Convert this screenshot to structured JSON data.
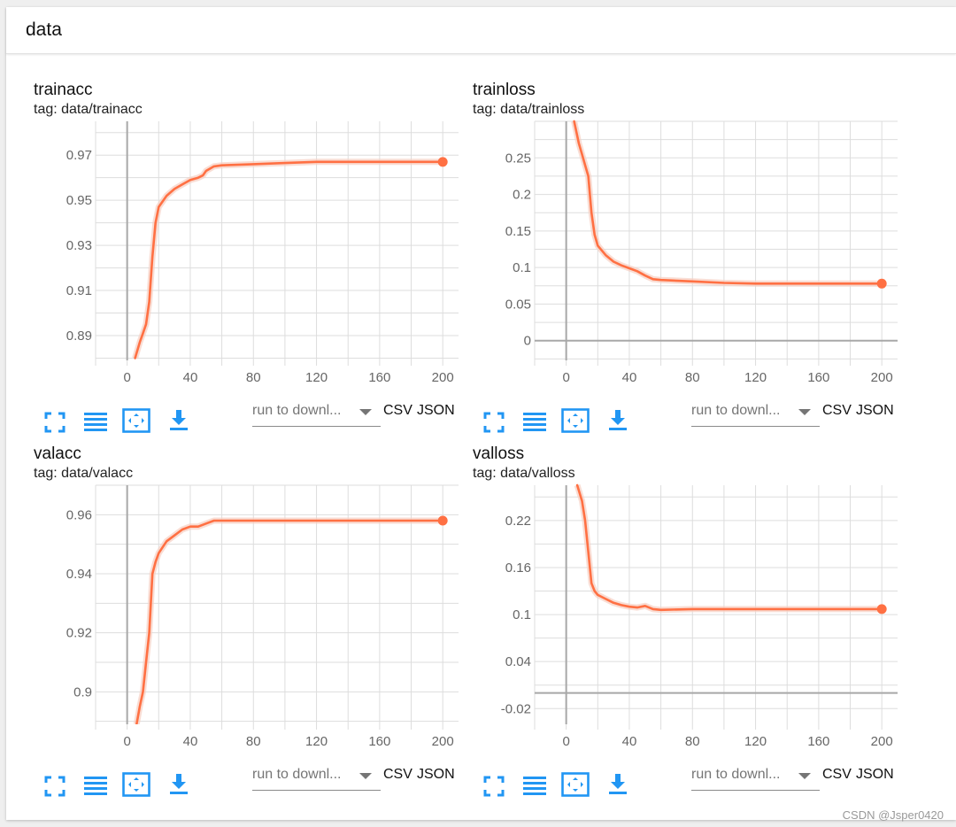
{
  "header": {
    "title": "data"
  },
  "controls": {
    "run_select_label": "run to downl...",
    "csv_label": "CSV",
    "json_label": "JSON"
  },
  "icons": [
    "fit-screen-icon",
    "list-lines-icon",
    "zoom-reset-icon",
    "download-icon",
    "chevron-down-icon"
  ],
  "watermark": "CSDN @Jsper0420",
  "colors": {
    "series": "#ff7043",
    "series_shadow": "#f6cfc2",
    "accent_icon": "#2196f3",
    "grid": "#dddddd",
    "axis": "#a8a8a8"
  },
  "chart_data": [
    {
      "type": "line",
      "title": "trainacc",
      "subtitle": "tag: data/trainacc",
      "xlabel": "",
      "ylabel": "",
      "xlim": [
        -20,
        210
      ],
      "ylim": [
        0.879,
        0.985
      ],
      "xticks": [
        0,
        40,
        80,
        120,
        160,
        200
      ],
      "yticks": [
        0.89,
        0.91,
        0.93,
        0.95,
        0.97
      ],
      "grid": true,
      "series": [
        {
          "x": [
            5,
            8,
            10,
            12,
            14,
            16,
            18,
            20,
            25,
            30,
            35,
            40,
            45,
            48,
            50,
            55,
            60,
            80,
            100,
            120,
            140,
            160,
            180,
            200
          ],
          "y": [
            0.88,
            0.887,
            0.891,
            0.895,
            0.905,
            0.925,
            0.94,
            0.947,
            0.952,
            0.955,
            0.957,
            0.959,
            0.96,
            0.961,
            0.963,
            0.965,
            0.9655,
            0.966,
            0.9665,
            0.967,
            0.967,
            0.967,
            0.967,
            0.967
          ]
        }
      ]
    },
    {
      "type": "line",
      "title": "trainloss",
      "subtitle": "tag: data/trainloss",
      "xlabel": "",
      "ylabel": "",
      "xlim": [
        -20,
        210
      ],
      "ylim": [
        -0.027,
        0.3
      ],
      "xticks": [
        0,
        40,
        80,
        120,
        160,
        200
      ],
      "yticks": [
        0,
        0.05,
        0.1,
        0.15,
        0.2,
        0.25
      ],
      "grid": true,
      "series": [
        {
          "x": [
            5,
            8,
            10,
            12,
            14,
            16,
            18,
            20,
            25,
            30,
            35,
            40,
            45,
            50,
            55,
            60,
            80,
            100,
            120,
            140,
            160,
            180,
            200
          ],
          "y": [
            0.3,
            0.27,
            0.255,
            0.24,
            0.225,
            0.175,
            0.145,
            0.13,
            0.117,
            0.108,
            0.103,
            0.099,
            0.095,
            0.089,
            0.084,
            0.083,
            0.081,
            0.079,
            0.078,
            0.078,
            0.078,
            0.078,
            0.078
          ]
        }
      ]
    },
    {
      "type": "line",
      "title": "valacc",
      "subtitle": "tag: data/valacc",
      "xlabel": "",
      "ylabel": "",
      "xlim": [
        -20,
        210
      ],
      "ylim": [
        0.889,
        0.97
      ],
      "xticks": [
        0,
        40,
        80,
        120,
        160,
        200
      ],
      "yticks": [
        0.9,
        0.92,
        0.94,
        0.96
      ],
      "grid": true,
      "series": [
        {
          "x": [
            6,
            8,
            10,
            12,
            14,
            16,
            18,
            20,
            25,
            30,
            35,
            40,
            45,
            50,
            55,
            60,
            80,
            100,
            120,
            140,
            160,
            180,
            200
          ],
          "y": [
            0.889,
            0.895,
            0.9,
            0.91,
            0.92,
            0.94,
            0.944,
            0.947,
            0.951,
            0.953,
            0.955,
            0.956,
            0.956,
            0.957,
            0.958,
            0.958,
            0.958,
            0.958,
            0.958,
            0.958,
            0.958,
            0.958,
            0.958
          ]
        }
      ]
    },
    {
      "type": "line",
      "title": "valloss",
      "subtitle": "tag: data/valloss",
      "xlabel": "",
      "ylabel": "",
      "xlim": [
        -20,
        210
      ],
      "ylim": [
        -0.04,
        0.265
      ],
      "xticks": [
        0,
        40,
        80,
        120,
        160,
        200
      ],
      "yticks": [
        -0.02,
        0.04,
        0.1,
        0.16,
        0.22
      ],
      "ytick_labels": [
        "-0.02",
        "0.04",
        "0.1",
        "0.16",
        "0.22"
      ],
      "grid": true,
      "series": [
        {
          "x": [
            7,
            10,
            12,
            14,
            16,
            18,
            20,
            25,
            30,
            35,
            40,
            45,
            50,
            55,
            60,
            80,
            100,
            120,
            140,
            160,
            180,
            200
          ],
          "y": [
            0.265,
            0.245,
            0.22,
            0.18,
            0.14,
            0.13,
            0.125,
            0.12,
            0.115,
            0.112,
            0.11,
            0.109,
            0.111,
            0.107,
            0.106,
            0.107,
            0.107,
            0.107,
            0.107,
            0.107,
            0.107,
            0.107
          ]
        }
      ]
    }
  ]
}
